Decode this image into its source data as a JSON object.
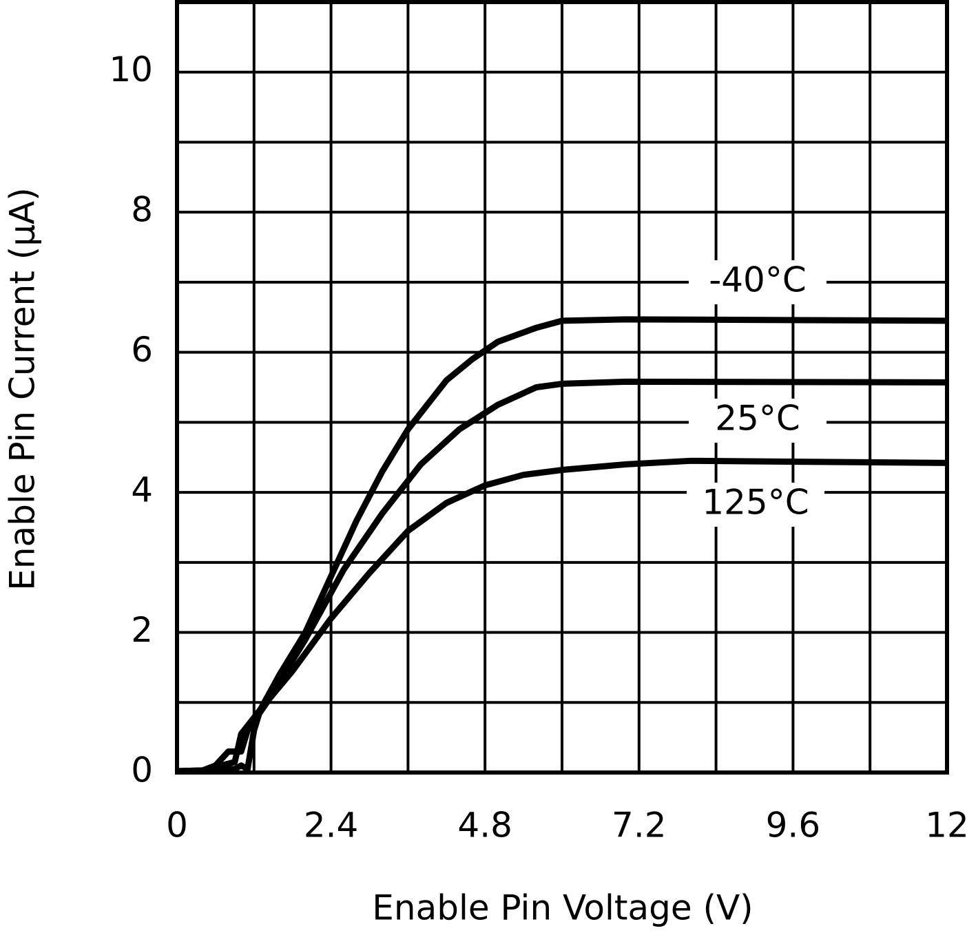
{
  "chart_data": {
    "type": "line",
    "x_label": "Enable Pin Voltage (V)",
    "y_label": "Enable Pin Current (µA)",
    "xlim": [
      0,
      12
    ],
    "ylim": [
      0,
      11
    ],
    "xticks": [
      0,
      2.4,
      4.8,
      7.2,
      9.6,
      12
    ],
    "yticks": [
      0,
      2,
      4,
      6,
      8,
      10
    ],
    "x_minor_grid": [
      1.2,
      3.6,
      6,
      8.4,
      10.8
    ],
    "y_minor_grid": [
      1,
      3,
      5,
      7,
      9
    ],
    "grid": true,
    "series": [
      {
        "name": "-40°C",
        "color": "#000000",
        "x": [
          0,
          0.4,
          0.9,
          1.0,
          1.1,
          1.2,
          1.3,
          1.6,
          2.0,
          2.4,
          2.8,
          3.2,
          3.6,
          4.2,
          4.6,
          5.0,
          5.6,
          6.0,
          7.0,
          12
        ],
        "values": [
          0.02,
          0.02,
          0.05,
          0.1,
          0.05,
          0.6,
          0.9,
          1.4,
          2.0,
          2.8,
          3.6,
          4.3,
          4.9,
          5.6,
          5.9,
          6.15,
          6.35,
          6.45,
          6.47,
          6.45
        ]
      },
      {
        "name": "25°C",
        "color": "#000000",
        "x": [
          0,
          0.4,
          0.6,
          0.8,
          1.0,
          1.1,
          1.4,
          2.0,
          2.6,
          3.2,
          3.8,
          4.4,
          5.0,
          5.6,
          6.0,
          7.0,
          12
        ],
        "values": [
          0.02,
          0.03,
          0.1,
          0.3,
          0.3,
          0.6,
          1.0,
          1.9,
          2.9,
          3.7,
          4.4,
          4.9,
          5.25,
          5.5,
          5.55,
          5.58,
          5.57
        ]
      },
      {
        "name": "125°C",
        "color": "#000000",
        "x": [
          0,
          0.4,
          0.9,
          1.0,
          1.3,
          1.8,
          2.4,
          3.0,
          3.6,
          4.2,
          4.8,
          5.4,
          6.0,
          7.0,
          8.0,
          12
        ],
        "values": [
          0.02,
          0.03,
          0.15,
          0.55,
          0.9,
          1.45,
          2.2,
          2.85,
          3.45,
          3.85,
          4.1,
          4.25,
          4.32,
          4.4,
          4.45,
          4.42
        ]
      }
    ]
  }
}
